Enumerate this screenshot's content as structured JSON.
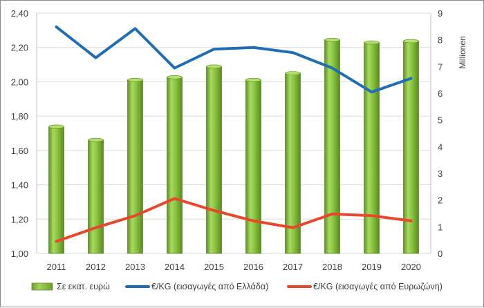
{
  "chart_data": {
    "type": "bar+line",
    "categories": [
      "2011",
      "2012",
      "2013",
      "2014",
      "2015",
      "2016",
      "2017",
      "2018",
      "2019",
      "2020"
    ],
    "bar_series": {
      "name": "Σε εκατ. ευρώ",
      "axis": "right",
      "color": "#8cc641",
      "values": [
        4.75,
        4.25,
        6.5,
        6.6,
        7.0,
        6.5,
        6.75,
        8.0,
        7.9,
        7.95
      ]
    },
    "line_series": [
      {
        "name": "€/KG (εισαγωγές από Ελλάδα)",
        "axis": "left",
        "color": "#1f6eb4",
        "values": [
          2.32,
          2.14,
          2.31,
          2.08,
          2.19,
          2.2,
          2.17,
          2.08,
          1.94,
          2.02
        ]
      },
      {
        "name": "€/KG (εισαγωγές από Ευρωζώνη)",
        "axis": "left",
        "color": "#e8472e",
        "values": [
          1.07,
          1.15,
          1.22,
          1.32,
          1.25,
          1.19,
          1.15,
          1.23,
          1.22,
          1.19
        ]
      }
    ],
    "left_axis": {
      "ylim": [
        1.0,
        2.4
      ],
      "ticks": [
        1.0,
        1.2,
        1.4,
        1.6,
        1.8,
        2.0,
        2.2,
        2.4
      ],
      "tick_labels": [
        "1,00",
        "1,20",
        "1,40",
        "1,60",
        "1,80",
        "2,00",
        "2,20",
        "2,40"
      ]
    },
    "right_axis": {
      "ylim": [
        0,
        9
      ],
      "ticks": [
        0,
        1,
        2,
        3,
        4,
        5,
        6,
        7,
        8,
        9
      ],
      "tick_labels": [
        "0",
        "1",
        "2",
        "3",
        "4",
        "5",
        "6",
        "7",
        "8",
        "9"
      ],
      "label": "Millionen"
    },
    "grid": true,
    "legend": "bottom"
  }
}
